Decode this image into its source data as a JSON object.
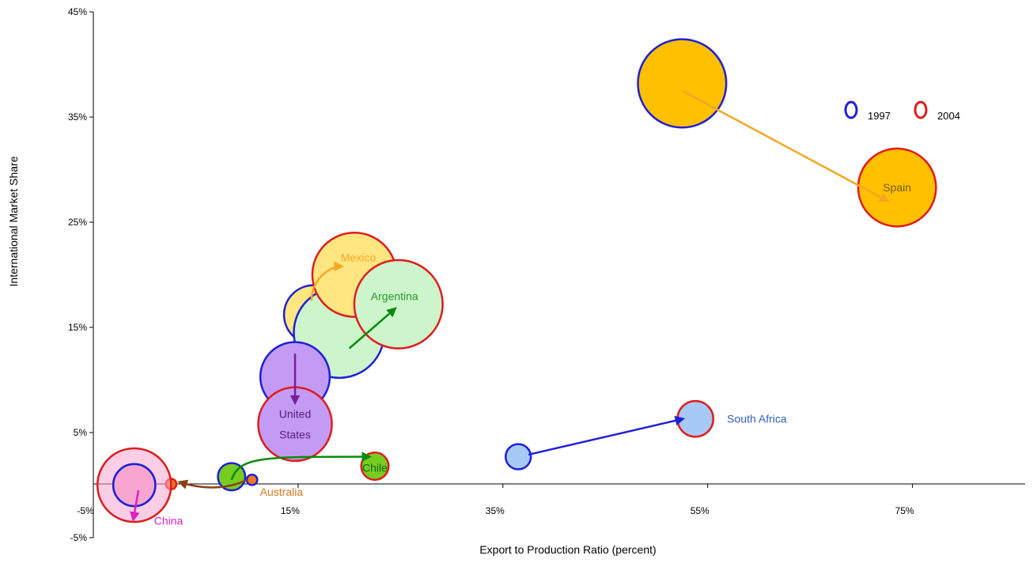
{
  "chart_data": {
    "type": "bubble",
    "title": "",
    "xlabel": "Export to Production Ratio (percent)",
    "ylabel": "International Market Share",
    "xlim": [
      -5,
      86
    ],
    "ylim": [
      -5,
      45
    ],
    "x_ticks": [
      "-5%",
      "15%",
      "35%",
      "55%",
      "75%"
    ],
    "x_tick_values": [
      -5,
      15,
      35,
      55,
      75
    ],
    "y_ticks": [
      "45%",
      "35%",
      "25%",
      "15%",
      "5%",
      "-5%"
    ],
    "y_tick_values": [
      45,
      35,
      25,
      15,
      5,
      -5
    ],
    "grid": false,
    "legend": {
      "position": "top-right",
      "items": [
        {
          "label": "1997",
          "color": "#1f1fd6"
        },
        {
          "label": "2004",
          "color": "#e01b1b"
        }
      ]
    },
    "series": [
      {
        "name": "Spain",
        "color": "#ffc000",
        "arrow_color": "#f5a623",
        "label_color": "#7a5a00",
        "p1997": {
          "x": 52.5,
          "y": 38.2,
          "r": 4.2
        },
        "p2004": {
          "x": 73.5,
          "y": 28.3,
          "r": 3.7
        },
        "arrow": {
          "from": [
            52.5,
            37.5
          ],
          "to": [
            72.6,
            27.0
          ]
        }
      },
      {
        "name": "Mexico",
        "color": "#ffe680",
        "arrow_color": "#f5a623",
        "label_color": "#f5a623",
        "p1997": {
          "x": 16.5,
          "y": 16.2,
          "r": 2.8
        },
        "p2004": {
          "x": 20.5,
          "y": 20.0,
          "r": 4.0
        },
        "arrow": {
          "from": [
            16.3,
            17.5
          ],
          "to": [
            19.3,
            20.8
          ]
        }
      },
      {
        "name": "Argentina",
        "color": "#ccf5cc",
        "arrow_color": "#0a8a0a",
        "label_color": "#2a9a2a",
        "p1997": {
          "x": 19.0,
          "y": 14.5,
          "r": 4.3
        },
        "p2004": {
          "x": 24.8,
          "y": 17.2,
          "r": 4.2
        },
        "arrow": {
          "from": [
            20.0,
            13.0
          ],
          "to": [
            24.5,
            16.8
          ]
        }
      },
      {
        "name": "United States",
        "label_lines": [
          "United",
          "States"
        ],
        "color": "#c39bf5",
        "arrow_color": "#7a1f9a",
        "label_color": "#5a1a7a",
        "p1997": {
          "x": 14.7,
          "y": 10.3,
          "r": 3.3
        },
        "p2004": {
          "x": 14.7,
          "y": 5.8,
          "r": 3.5
        },
        "arrow": {
          "from": [
            14.7,
            12.5
          ],
          "to": [
            14.7,
            7.8
          ]
        }
      },
      {
        "name": "South Africa",
        "color": "#a7c9f5",
        "arrow_color": "#1f1fd6",
        "label_color": "#3060c0",
        "p1997": {
          "x": 36.5,
          "y": 2.7,
          "r": 1.2
        },
        "p2004": {
          "x": 53.8,
          "y": 6.3,
          "r": 1.7
        },
        "arrow": {
          "from": [
            37.5,
            2.9
          ],
          "to": [
            52.6,
            6.3
          ]
        }
      },
      {
        "name": "Chile",
        "color": "#77cc22",
        "arrow_color": "#0a8a0a",
        "label_color": "#0a6a0a",
        "p1997": {
          "x": 8.5,
          "y": 0.8,
          "r": 1.3
        },
        "p2004": {
          "x": 22.5,
          "y": 1.8,
          "r": 1.3
        },
        "arrow": {
          "from": [
            8.5,
            0.5
          ],
          "to": [
            22.0,
            2.7
          ]
        }
      },
      {
        "name": "Australia",
        "color": "#f07820",
        "arrow_color": "#8a4010",
        "label_color": "#e07820",
        "p1997": {
          "x": 10.5,
          "y": 0.5,
          "r": 0.5
        },
        "p2004": {
          "x": 2.6,
          "y": 0.1,
          "r": 0.5
        },
        "arrow": {
          "from": [
            10.0,
            0.5
          ],
          "to": [
            3.4,
            0.3
          ]
        }
      },
      {
        "name": "China",
        "color": "#f7a6d0",
        "arrow_color": "#e020c0",
        "label_color": "#e020c0",
        "p1997": {
          "x": -1.0,
          "y": 0.0,
          "r": 2.0
        },
        "p2004": {
          "x": -1.0,
          "y": 0.0,
          "r": 3.5
        },
        "arrow": {
          "from": [
            -0.6,
            -0.5
          ],
          "to": [
            -1.1,
            -3.3
          ]
        }
      }
    ]
  }
}
